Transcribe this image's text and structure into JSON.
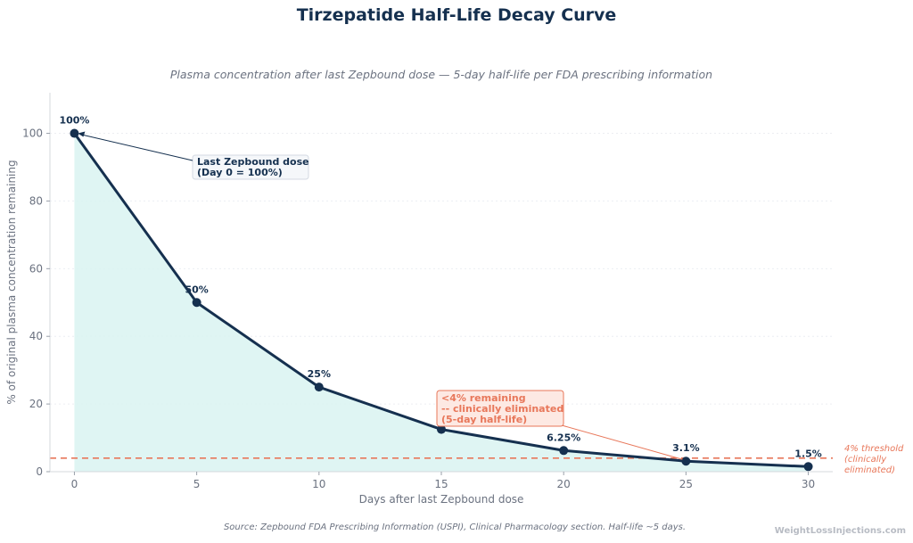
{
  "chart_data": {
    "type": "line",
    "title": "Tirzepatide Half-Life Decay Curve",
    "subtitle": "Plasma concentration after last Zepbound dose — 5-day half-life per FDA prescribing information",
    "xlabel": "Days after last Zepbound dose",
    "ylabel": "% of original plasma concentration remaining",
    "x": [
      0,
      5,
      10,
      15,
      20,
      25,
      30
    ],
    "values": [
      100,
      50,
      25,
      12.5,
      6.25,
      3.1,
      1.5
    ],
    "point_labels": [
      "100%",
      "50%",
      "25%",
      "",
      "6.25%",
      "3.1%",
      "1.5%"
    ],
    "xlim": [
      -1,
      31
    ],
    "ylim": [
      0,
      112
    ],
    "xticks": [
      0,
      5,
      10,
      15,
      20,
      25,
      30
    ],
    "yticks": [
      0,
      20,
      40,
      60,
      80,
      100
    ],
    "grid": true,
    "threshold": {
      "value": 4,
      "label_lines": [
        "4% threshold",
        "(clinically",
        "eliminated)"
      ]
    },
    "annotations": [
      {
        "target_x": 0,
        "target_y": 100,
        "lines": [
          "Last Zepbound dose",
          "(Day 0 = 100%)"
        ]
      },
      {
        "target_x": 25,
        "target_y": 3.1,
        "lines": [
          "<4% remaining",
          "-- clinically eliminated",
          "(5-day half-life)"
        ]
      }
    ],
    "colors": {
      "line": "#15304f",
      "fill": "#d9f3f1",
      "threshold": "#e8775a",
      "grid": "#eceef2"
    }
  },
  "footer": {
    "source": "Source: Zepbound FDA Prescribing Information (USPI), Clinical Pharmacology section. Half-life ~5 days.",
    "watermark": "WeightLossInjections.com"
  }
}
